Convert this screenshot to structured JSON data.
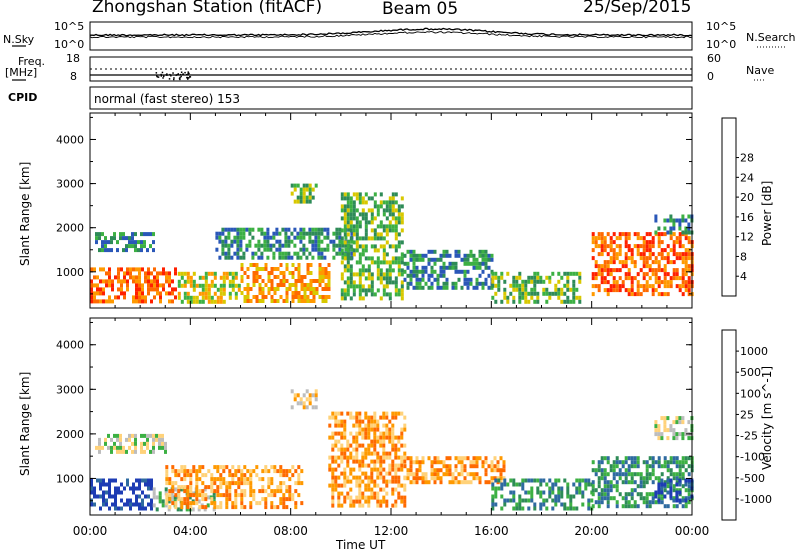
{
  "header": {
    "station": "Zhongshan Station (fitACF)",
    "beam": "Beam 05",
    "date": "25/Sep/2015"
  },
  "noise_panel": {
    "left_label": "N.Sky",
    "right_label": "N.Search",
    "ticks": [
      "10^5",
      "10^0"
    ]
  },
  "freq_panel": {
    "left_label_line1": "Freq.",
    "left_label_line2": "[MHz]",
    "left_ticks": [
      "18",
      "8"
    ],
    "right_label": "Nave",
    "right_ticks": [
      "60",
      "0"
    ]
  },
  "cpid": {
    "label": "CPID",
    "value": "normal (fast stereo) 153"
  },
  "chart_data": [
    {
      "type": "heatmap",
      "title": "",
      "xlabel": "Time UT",
      "ylabel": "Slant Range [km]",
      "x_tick_labels": [
        "00:00",
        "04:00",
        "08:00",
        "12:00",
        "16:00",
        "20:00",
        "00:00"
      ],
      "y_tick_labels": [
        "1000",
        "2000",
        "3000",
        "4000"
      ],
      "ylim": [
        180,
        4600
      ],
      "colorbar": {
        "label": "Power [dB]",
        "tick_labels": [
          "4",
          "8",
          "12",
          "16",
          "20",
          "24",
          "28"
        ],
        "colors": [
          "#0000ff",
          "#2a57b8",
          "#2e8b57",
          "#3cb043",
          "#d8c800",
          "#ff9900",
          "#ff6a00",
          "#ff2000",
          "#d40000"
        ]
      },
      "echo_regions": [
        {
          "t0": 0.0,
          "t1": 3.4,
          "r0": 300,
          "r1": 1100,
          "level": 6
        },
        {
          "t0": 0.2,
          "t1": 2.5,
          "r0": 1500,
          "r1": 1900,
          "level": 2
        },
        {
          "t0": 3.5,
          "t1": 6.0,
          "r0": 300,
          "r1": 1000,
          "level": 4
        },
        {
          "t0": 6.0,
          "t1": 9.5,
          "r0": 300,
          "r1": 1200,
          "level": 5
        },
        {
          "t0": 5.0,
          "t1": 10.5,
          "r0": 1300,
          "r1": 2000,
          "level": 2
        },
        {
          "t0": 8.0,
          "t1": 9.0,
          "r0": 2600,
          "r1": 3000,
          "level": 3
        },
        {
          "t0": 10.0,
          "t1": 12.5,
          "r0": 400,
          "r1": 2800,
          "level": 3
        },
        {
          "t0": 12.5,
          "t1": 16.0,
          "r0": 600,
          "r1": 1500,
          "level": 2
        },
        {
          "t0": 16.0,
          "t1": 19.5,
          "r0": 300,
          "r1": 1000,
          "level": 3
        },
        {
          "t0": 20.0,
          "t1": 24.0,
          "r0": 500,
          "r1": 1900,
          "level": 6
        },
        {
          "t0": 22.5,
          "t1": 24.0,
          "r0": 1900,
          "r1": 2300,
          "level": 2
        }
      ]
    },
    {
      "type": "heatmap",
      "title": "",
      "xlabel": "Time UT",
      "ylabel": "Slant Range [km]",
      "x_tick_labels": [
        "00:00",
        "04:00",
        "08:00",
        "12:00",
        "16:00",
        "20:00",
        "00:00"
      ],
      "y_tick_labels": [
        "1000",
        "2000",
        "3000",
        "4000"
      ],
      "ylim": [
        180,
        4600
      ],
      "colorbar": {
        "label": "Velocity [m s^-1]",
        "tick_labels": [
          "1000",
          "500",
          "100",
          "25",
          "-25",
          "-100",
          "-500",
          "-1000"
        ],
        "colors": [
          "#1e3cb4",
          "#2e6aa0",
          "#2e8b57",
          "#3cb043",
          "#bdbdbd",
          "#ffd27a",
          "#ff9900",
          "#ff6a00",
          "#e00000"
        ]
      },
      "echo_regions": [
        {
          "t0": 0.0,
          "t1": 2.5,
          "r0": 300,
          "r1": 1000,
          "level": 0
        },
        {
          "t0": 0.2,
          "t1": 3.0,
          "r0": 1600,
          "r1": 2000,
          "level": 4
        },
        {
          "t0": 2.5,
          "t1": 5.0,
          "r0": 300,
          "r1": 800,
          "level": 3
        },
        {
          "t0": 3.0,
          "t1": 8.5,
          "r0": 400,
          "r1": 1300,
          "level": 6
        },
        {
          "t0": 8.0,
          "t1": 9.0,
          "r0": 2600,
          "r1": 3000,
          "level": 5
        },
        {
          "t0": 9.5,
          "t1": 12.5,
          "r0": 400,
          "r1": 2500,
          "level": 6
        },
        {
          "t0": 12.5,
          "t1": 16.5,
          "r0": 900,
          "r1": 1500,
          "level": 6
        },
        {
          "t0": 16.0,
          "t1": 20.0,
          "r0": 300,
          "r1": 1000,
          "level": 2
        },
        {
          "t0": 20.0,
          "t1": 24.0,
          "r0": 400,
          "r1": 1500,
          "level": 2
        },
        {
          "t0": 22.5,
          "t1": 24.0,
          "r0": 500,
          "r1": 1000,
          "level": 0
        },
        {
          "t0": 22.5,
          "t1": 24.0,
          "r0": 1900,
          "r1": 2400,
          "level": 4
        }
      ]
    }
  ]
}
